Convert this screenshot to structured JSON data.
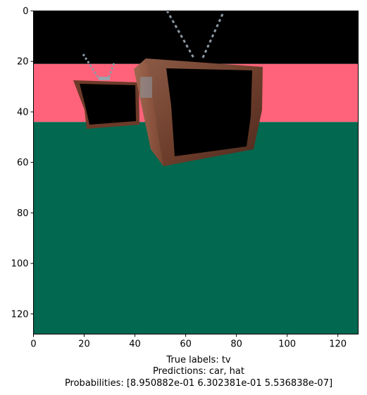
{
  "chart_data": {
    "type": "image",
    "xlim": [
      0,
      128
    ],
    "ylim": [
      128,
      0
    ],
    "xticks": [
      0,
      20,
      40,
      60,
      80,
      100,
      120
    ],
    "yticks": [
      0,
      20,
      40,
      60,
      80,
      100,
      120
    ],
    "image": {
      "background_bands": [
        {
          "from_row": 0,
          "to_row": 21,
          "color": "#000000"
        },
        {
          "from_row": 21,
          "to_row": 44,
          "color": "#ff637b"
        },
        {
          "from_row": 44,
          "to_row": 128,
          "color": "#02684f"
        }
      ]
    }
  },
  "caption": {
    "true_labels": "True labels: tv",
    "predictions": "Predictions: car, hat",
    "probabilities": "Probabilities: [8.950882e-01 6.302381e-01 5.536838e-07]"
  }
}
